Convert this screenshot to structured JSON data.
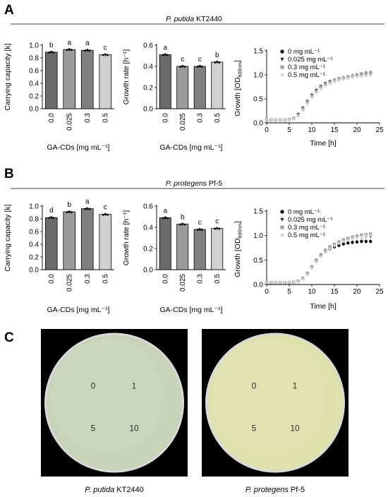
{
  "panels": {
    "A": {
      "letter": "A",
      "strain_italic": "P. putida",
      "strain_rest": " KT2440",
      "carrying": {
        "ylabel": "Carrying capacity [k]",
        "xlabel": "GA-CDs [mg mL⁻¹]",
        "yticks": [
          "0.0",
          "0.2",
          "0.4",
          "0.6",
          "0.8",
          "1.0"
        ],
        "categories": [
          "0.0",
          "0.025",
          "0.3",
          "0.5"
        ],
        "values": [
          0.89,
          0.93,
          0.92,
          0.85
        ],
        "letters": [
          "b",
          "a",
          "a",
          "c"
        ],
        "ylim": [
          0,
          1.0
        ]
      },
      "growth_rate": {
        "ylabel": "Growth rate [h⁻¹]",
        "xlabel": "GA-CDs [mg mL⁻¹]",
        "yticks": [
          "0.0",
          "0.2",
          "0.4",
          "0.6"
        ],
        "categories": [
          "0.0",
          "0.025",
          "0.3",
          "0.5"
        ],
        "values": [
          0.51,
          0.4,
          0.4,
          0.44
        ],
        "letters": [
          "a",
          "c",
          "c",
          "b"
        ],
        "ylim": [
          0,
          0.6
        ]
      },
      "curve": {
        "ylabel": "Growth [OD",
        "ylabel_sub": "600nm",
        "ylabel_end": "]",
        "xlabel": "Time [h]",
        "xticks": [
          "0",
          "5",
          "10",
          "15",
          "20",
          "25"
        ],
        "yticks": [
          "0.0",
          "0.5",
          "1.0",
          "1.5"
        ],
        "legend": [
          "0 mg mL⁻¹",
          "0.025 mg mL⁻¹",
          "0.3 mg mL⁻¹",
          "0.5 mg mL⁻¹"
        ],
        "xlim": [
          0,
          25
        ],
        "ylim": [
          0,
          1.5
        ],
        "x": [
          0,
          1,
          2,
          3,
          4,
          5,
          6,
          7,
          8,
          9,
          10,
          11,
          12,
          13,
          14,
          15,
          16,
          17,
          18,
          19,
          20,
          21,
          22,
          23
        ],
        "series": [
          [
            0.06,
            0.06,
            0.06,
            0.06,
            0.06,
            0.07,
            0.09,
            0.16,
            0.28,
            0.42,
            0.55,
            0.65,
            0.73,
            0.79,
            0.83,
            0.87,
            0.9,
            0.92,
            0.94,
            0.96,
            0.98,
            1.0,
            1.02,
            1.03
          ],
          [
            0.06,
            0.06,
            0.06,
            0.06,
            0.06,
            0.07,
            0.1,
            0.18,
            0.31,
            0.45,
            0.58,
            0.68,
            0.76,
            0.82,
            0.86,
            0.89,
            0.92,
            0.94,
            0.96,
            0.98,
            1.0,
            1.02,
            1.04,
            1.05
          ],
          [
            0.06,
            0.06,
            0.06,
            0.06,
            0.06,
            0.07,
            0.09,
            0.16,
            0.29,
            0.43,
            0.56,
            0.66,
            0.74,
            0.8,
            0.84,
            0.88,
            0.91,
            0.93,
            0.95,
            0.97,
            0.99,
            1.01,
            1.03,
            1.04
          ],
          [
            0.06,
            0.06,
            0.06,
            0.06,
            0.06,
            0.06,
            0.08,
            0.14,
            0.26,
            0.4,
            0.53,
            0.63,
            0.71,
            0.77,
            0.82,
            0.86,
            0.89,
            0.91,
            0.93,
            0.95,
            0.96,
            0.97,
            0.98,
            0.99
          ]
        ]
      }
    },
    "B": {
      "letter": "B",
      "strain_italic": "P. protegens",
      "strain_rest": " Pf-5",
      "carrying": {
        "ylabel": "Carrying capacity [k]",
        "xlabel": "GA-CDs [mg mL⁻¹]",
        "yticks": [
          "0.0",
          "0.2",
          "0.4",
          "0.6",
          "0.8",
          "1.0"
        ],
        "categories": [
          "0.0",
          "0.025",
          "0.3",
          "0.5"
        ],
        "values": [
          0.82,
          0.91,
          0.96,
          0.87
        ],
        "letters": [
          "d",
          "b",
          "a",
          "c"
        ],
        "ylim": [
          0,
          1.0
        ]
      },
      "growth_rate": {
        "ylabel": "Growth rate [h⁻¹]",
        "xlabel": "GA-CDs [mg mL⁻¹]",
        "yticks": [
          "0.0",
          "0.2",
          "0.4",
          "0.6"
        ],
        "categories": [
          "0.0",
          "0.025",
          "0.3",
          "0.5"
        ],
        "values": [
          0.49,
          0.43,
          0.38,
          0.39
        ],
        "letters": [
          "a",
          "b",
          "c",
          "c"
        ],
        "ylim": [
          0,
          0.6
        ]
      },
      "curve": {
        "ylabel": "Growth [OD",
        "ylabel_sub": "600nm",
        "ylabel_end": "]",
        "xlabel": "Time [h]",
        "xticks": [
          "0",
          "5",
          "10",
          "15",
          "20",
          "25"
        ],
        "yticks": [
          "0.0",
          "0.5",
          "1.0",
          "1.5"
        ],
        "legend": [
          "0 mg mL⁻¹",
          "0.025 mg mL⁻¹",
          "0.3 mg mL⁻¹",
          "0.5 mg mL⁻¹"
        ],
        "xlim": [
          0,
          25
        ],
        "ylim": [
          0,
          1.5
        ],
        "x": [
          0,
          1,
          2,
          3,
          4,
          5,
          6,
          7,
          8,
          9,
          10,
          11,
          12,
          13,
          14,
          15,
          16,
          17,
          18,
          19,
          20,
          21,
          22,
          23
        ],
        "series": [
          [
            0.04,
            0.04,
            0.04,
            0.04,
            0.04,
            0.04,
            0.05,
            0.07,
            0.12,
            0.22,
            0.35,
            0.48,
            0.59,
            0.67,
            0.73,
            0.77,
            0.8,
            0.83,
            0.85,
            0.86,
            0.87,
            0.88,
            0.88,
            0.88
          ],
          [
            0.04,
            0.04,
            0.04,
            0.04,
            0.04,
            0.04,
            0.05,
            0.07,
            0.13,
            0.23,
            0.36,
            0.49,
            0.6,
            0.68,
            0.75,
            0.8,
            0.84,
            0.88,
            0.91,
            0.94,
            0.96,
            0.97,
            0.98,
            0.98
          ],
          [
            0.04,
            0.04,
            0.04,
            0.04,
            0.04,
            0.04,
            0.05,
            0.07,
            0.13,
            0.23,
            0.36,
            0.5,
            0.61,
            0.7,
            0.77,
            0.82,
            0.87,
            0.91,
            0.94,
            0.97,
            0.99,
            1.01,
            1.02,
            1.03
          ],
          [
            0.04,
            0.04,
            0.04,
            0.04,
            0.04,
            0.04,
            0.05,
            0.06,
            0.11,
            0.2,
            0.33,
            0.46,
            0.57,
            0.66,
            0.73,
            0.79,
            0.84,
            0.88,
            0.91,
            0.94,
            0.96,
            0.98,
            1.0,
            1.01
          ]
        ]
      }
    }
  },
  "panel_c": {
    "letter": "C",
    "plates": [
      {
        "caption_italic": "P. putida",
        "caption_rest": " KT2440",
        "labels": [
          "0",
          "1",
          "5",
          "10"
        ],
        "color": "#c7d4b8"
      },
      {
        "caption_italic": "P. protegens",
        "caption_rest": " Pf-5",
        "labels": [
          "0",
          "1",
          "5",
          "10"
        ],
        "color": "#dfe1ad"
      }
    ]
  },
  "colors": {
    "bars": [
      "#6b6b6b",
      "#9b9b9b",
      "#808080",
      "#d0d0d0"
    ],
    "series": [
      "#000000",
      "#1e1e1e",
      "#a0a0a0",
      "#d2d2d2"
    ]
  },
  "chart_data": [
    {
      "type": "bar",
      "title": "P. putida KT2440",
      "ylabel": "Carrying capacity [k]",
      "xlabel": "GA-CDs [mg mL⁻¹]",
      "categories": [
        "0.0",
        "0.025",
        "0.3",
        "0.5"
      ],
      "values": [
        0.89,
        0.93,
        0.92,
        0.85
      ],
      "ylim": [
        0,
        1.0
      ]
    },
    {
      "type": "bar",
      "title": "P. putida KT2440",
      "ylabel": "Growth rate [h⁻¹]",
      "xlabel": "GA-CDs [mg mL⁻¹]",
      "categories": [
        "0.0",
        "0.025",
        "0.3",
        "0.5"
      ],
      "values": [
        0.51,
        0.4,
        0.4,
        0.44
      ],
      "ylim": [
        0,
        0.6
      ]
    },
    {
      "type": "scatter",
      "title": "P. putida KT2440",
      "ylabel": "Growth [OD600nm]",
      "xlabel": "Time [h]",
      "xlim": [
        0,
        25
      ],
      "ylim": [
        0,
        1.5
      ]
    },
    {
      "type": "bar",
      "title": "P. protegens Pf-5",
      "ylabel": "Carrying capacity [k]",
      "xlabel": "GA-CDs [mg mL⁻¹]",
      "categories": [
        "0.0",
        "0.025",
        "0.3",
        "0.5"
      ],
      "values": [
        0.82,
        0.91,
        0.96,
        0.87
      ],
      "ylim": [
        0,
        1.0
      ]
    },
    {
      "type": "bar",
      "title": "P. protegens Pf-5",
      "ylabel": "Growth rate [h⁻¹]",
      "xlabel": "GA-CDs [mg mL⁻¹]",
      "categories": [
        "0.0",
        "0.025",
        "0.3",
        "0.5"
      ],
      "values": [
        0.49,
        0.43,
        0.38,
        0.39
      ],
      "ylim": [
        0,
        0.6
      ]
    },
    {
      "type": "scatter",
      "title": "P. protegens Pf-5",
      "ylabel": "Growth [OD600nm]",
      "xlabel": "Time [h]",
      "xlim": [
        0,
        25
      ],
      "ylim": [
        0,
        1.5
      ]
    }
  ]
}
